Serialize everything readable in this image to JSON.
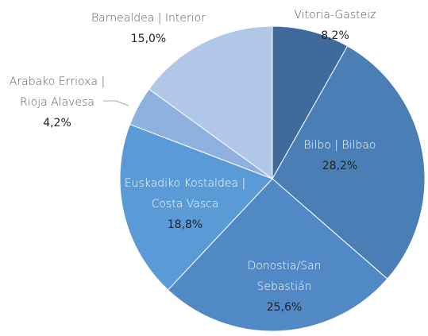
{
  "chart_data": {
    "type": "pie",
    "categories": [
      "Vitoria-Gasteiz",
      "Bilbo | Bilbao",
      "Donostia/San Sebastián",
      "Euskadiko Kostaldea | Costa Vasca",
      "Arabako Errioxa | Rioja Alavesa",
      "Barnealdea | Interior"
    ],
    "values": [
      8.2,
      28.2,
      25.6,
      18.8,
      4.2,
      15.0
    ],
    "value_labels": [
      "8,2%",
      "28,2%",
      "25,6%",
      "18,8%",
      "4,2%",
      "15,0%"
    ],
    "colors": [
      "#3e6b9b",
      "#4a7fb6",
      "#5089c6",
      "#5a9ad6",
      "#8fb1df",
      "#b1c7e7"
    ]
  }
}
